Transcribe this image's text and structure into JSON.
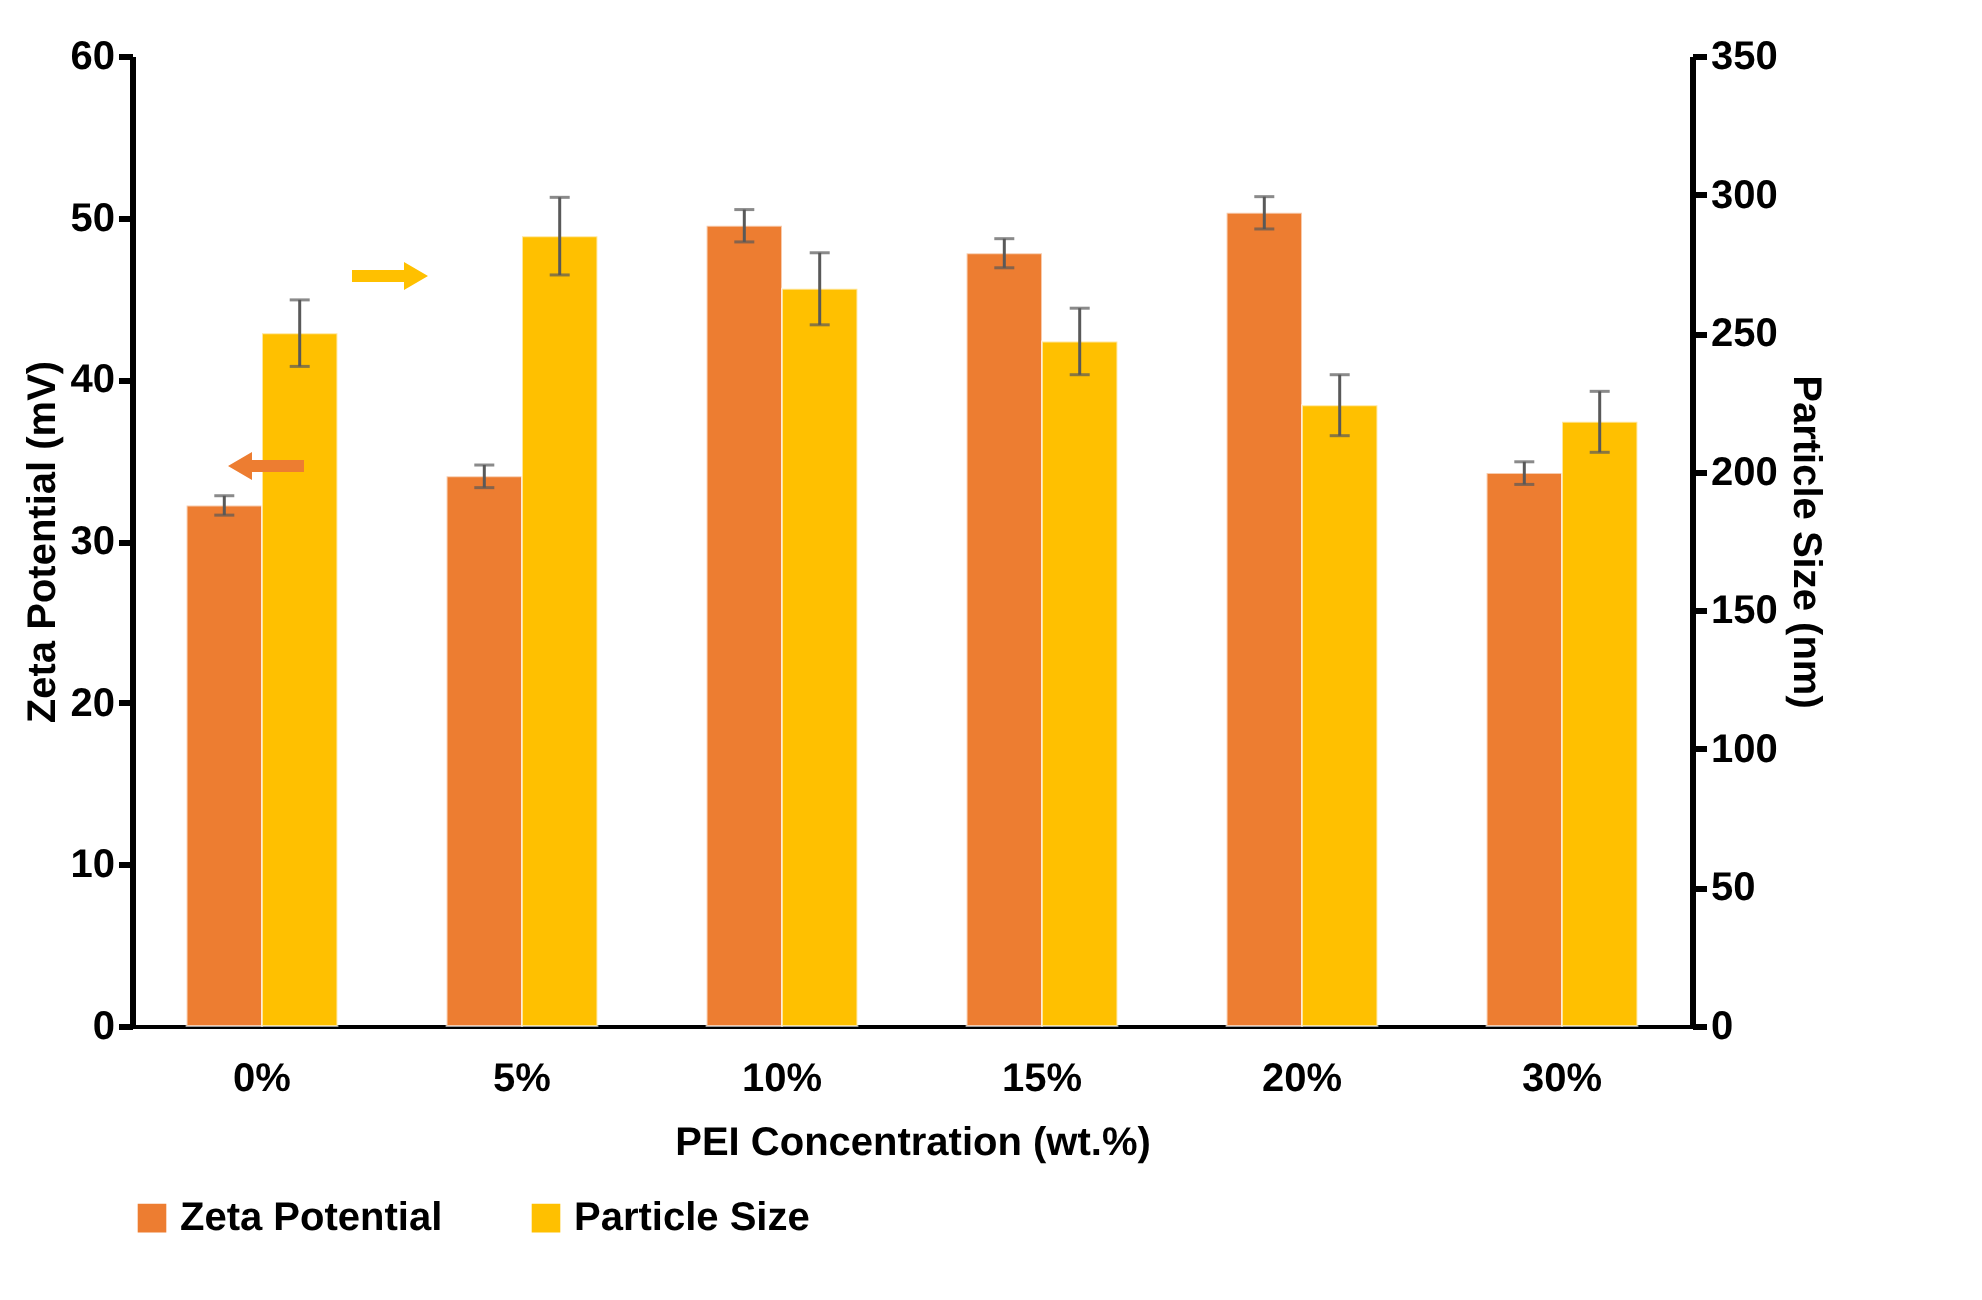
{
  "chart_data": {
    "type": "bar",
    "xlabel": "PEI Concentration (wt.%)",
    "ylabel": "Zeta Potential (mV)",
    "y2label": "Particle Size (nm)",
    "categories": [
      "0%",
      "5%",
      "10%",
      "15%",
      "20%",
      "30%"
    ],
    "series": [
      {
        "name": "Zeta Potential",
        "color": "#ed7d31",
        "values": [
          32.2,
          34.0,
          49.5,
          47.8,
          50.3,
          34.2
        ],
        "errors": [
          0.6,
          0.7,
          1.0,
          0.9,
          1.0,
          0.7
        ]
      },
      {
        "name": "Particle Size",
        "color": "#ffc000",
        "axis": "y2",
        "values": [
          250,
          285,
          266,
          247,
          224,
          218
        ],
        "errors": [
          12,
          14,
          13,
          12,
          11,
          11
        ]
      }
    ],
    "ylim": [
      0,
      60
    ],
    "yticks": [
      0,
      10,
      20,
      30,
      40,
      50,
      60
    ],
    "y2lim": [
      0,
      350
    ],
    "y2ticks": [
      0,
      50,
      100,
      150,
      200,
      250,
      300,
      350
    ],
    "grid": false,
    "legend": "bottom"
  }
}
